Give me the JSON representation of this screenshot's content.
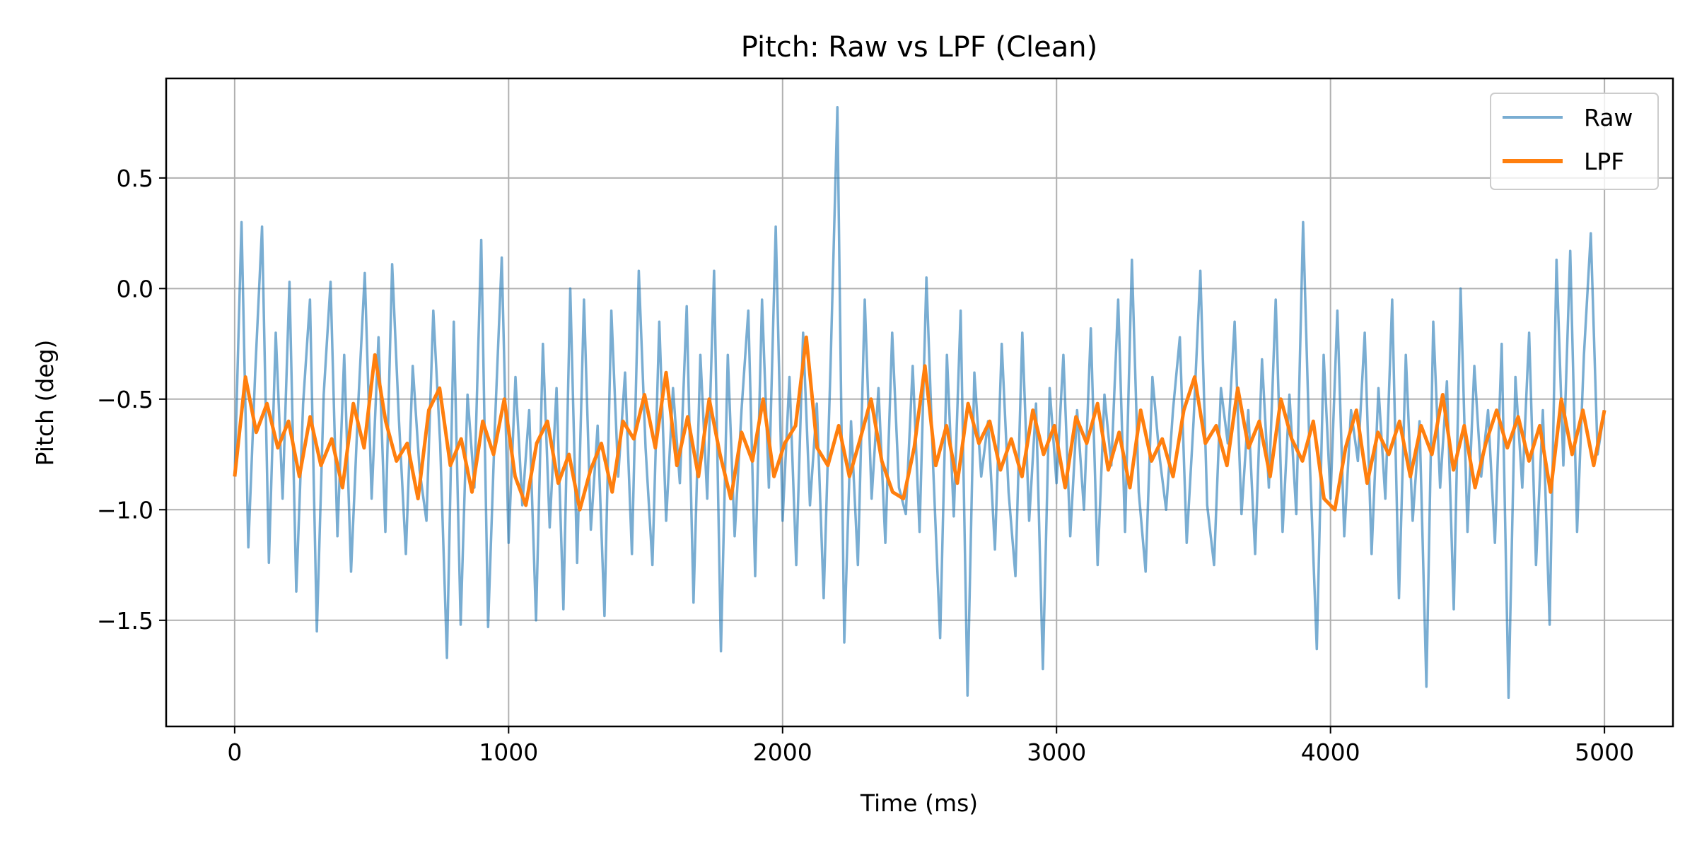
{
  "chart_data": {
    "type": "line",
    "title": "Pitch: Raw vs LPF (Clean)",
    "xlabel": "Time (ms)",
    "ylabel": "Pitch (deg)",
    "xlim": [
      -250,
      5250
    ],
    "ylim": [
      -1.98,
      0.95
    ],
    "x_start": 0,
    "x_end": 5000,
    "xticks": [
      0,
      1000,
      2000,
      3000,
      4000,
      5000
    ],
    "xtick_labels": [
      "0",
      "1000",
      "2000",
      "3000",
      "4000",
      "5000"
    ],
    "yticks": [
      0.5,
      0.0,
      -0.5,
      -1.0,
      -1.5
    ],
    "ytick_labels": [
      "0.5",
      "0.0",
      "−0.5",
      "−1.0",
      "−1.5"
    ],
    "grid": true,
    "legend_position": "top-right",
    "series": [
      {
        "name": "Raw",
        "color": "#1f77b4",
        "opacity": 0.6,
        "values": [
          -0.85,
          0.3,
          -1.17,
          -0.38,
          0.28,
          -1.24,
          -0.2,
          -0.95,
          0.03,
          -1.37,
          -0.52,
          -0.05,
          -1.55,
          -0.48,
          0.03,
          -1.12,
          -0.3,
          -1.28,
          -0.55,
          0.07,
          -0.95,
          -0.22,
          -1.1,
          0.11,
          -0.6,
          -1.2,
          -0.35,
          -0.82,
          -1.05,
          -0.1,
          -0.7,
          -1.67,
          -0.15,
          -1.52,
          -0.48,
          -0.9,
          0.22,
          -1.53,
          -0.62,
          0.14,
          -1.15,
          -0.4,
          -0.98,
          -0.55,
          -1.5,
          -0.25,
          -1.08,
          -0.45,
          -1.45,
          0.0,
          -1.24,
          -0.05,
          -1.09,
          -0.62,
          -1.48,
          -0.1,
          -0.85,
          -0.38,
          -1.2,
          0.08,
          -0.72,
          -1.25,
          -0.15,
          -1.05,
          -0.45,
          -0.88,
          -0.08,
          -1.42,
          -0.3,
          -0.95,
          0.08,
          -1.64,
          -0.3,
          -1.12,
          -0.55,
          -0.1,
          -1.3,
          -0.05,
          -0.9,
          0.28,
          -1.05,
          -0.4,
          -1.25,
          -0.2,
          -0.98,
          -0.52,
          -1.4,
          -0.35,
          0.82,
          -1.6,
          -0.6,
          -1.25,
          -0.05,
          -0.95,
          -0.45,
          -1.15,
          -0.2,
          -0.9,
          -1.02,
          -0.35,
          -1.1,
          0.05,
          -0.82,
          -1.58,
          -0.3,
          -1.03,
          -0.1,
          -1.84,
          -0.38,
          -0.85,
          -0.6,
          -1.18,
          -0.25,
          -0.92,
          -1.3,
          -0.2,
          -1.05,
          -0.52,
          -1.72,
          -0.45,
          -0.88,
          -0.3,
          -1.12,
          -0.55,
          -1.0,
          -0.18,
          -1.25,
          -0.48,
          -0.8,
          -0.05,
          -1.1,
          0.13,
          -0.92,
          -1.28,
          -0.4,
          -0.75,
          -1.0,
          -0.55,
          -0.22,
          -1.15,
          -0.6,
          0.08,
          -0.98,
          -1.25,
          -0.45,
          -0.7,
          -0.15,
          -1.02,
          -0.55,
          -1.2,
          -0.32,
          -0.9,
          -0.05,
          -1.1,
          -0.48,
          -1.02,
          0.3,
          -0.8,
          -1.63,
          -0.3,
          -0.95,
          -0.1,
          -1.12,
          -0.55,
          -0.78,
          -0.2,
          -1.2,
          -0.45,
          -0.95,
          -0.05,
          -1.4,
          -0.3,
          -1.05,
          -0.6,
          -1.8,
          -0.15,
          -0.9,
          -0.42,
          -1.45,
          0.0,
          -1.1,
          -0.35,
          -0.85,
          -0.55,
          -1.15,
          -0.25,
          -1.85,
          -0.4,
          -0.9,
          -0.2,
          -1.25,
          -0.55,
          -1.52,
          0.13,
          -0.8,
          0.17,
          -1.1,
          -0.3,
          0.25,
          -0.75,
          -0.55
        ]
      },
      {
        "name": "LPF",
        "color": "#ff7f0e",
        "opacity": 1,
        "values": [
          -0.85,
          -0.4,
          -0.65,
          -0.52,
          -0.72,
          -0.6,
          -0.85,
          -0.58,
          -0.8,
          -0.68,
          -0.9,
          -0.52,
          -0.72,
          -0.3,
          -0.6,
          -0.78,
          -0.7,
          -0.95,
          -0.55,
          -0.45,
          -0.8,
          -0.68,
          -0.92,
          -0.6,
          -0.75,
          -0.5,
          -0.85,
          -0.98,
          -0.7,
          -0.6,
          -0.88,
          -0.75,
          -1.0,
          -0.82,
          -0.7,
          -0.92,
          -0.6,
          -0.68,
          -0.48,
          -0.72,
          -0.38,
          -0.8,
          -0.58,
          -0.85,
          -0.5,
          -0.75,
          -0.95,
          -0.65,
          -0.78,
          -0.5,
          -0.85,
          -0.7,
          -0.62,
          -0.22,
          -0.72,
          -0.8,
          -0.62,
          -0.85,
          -0.68,
          -0.5,
          -0.78,
          -0.92,
          -0.95,
          -0.72,
          -0.35,
          -0.8,
          -0.62,
          -0.88,
          -0.52,
          -0.7,
          -0.6,
          -0.82,
          -0.68,
          -0.85,
          -0.55,
          -0.75,
          -0.62,
          -0.9,
          -0.58,
          -0.7,
          -0.52,
          -0.82,
          -0.65,
          -0.9,
          -0.55,
          -0.78,
          -0.68,
          -0.85,
          -0.55,
          -0.4,
          -0.7,
          -0.62,
          -0.8,
          -0.45,
          -0.72,
          -0.6,
          -0.85,
          -0.5,
          -0.68,
          -0.78,
          -0.6,
          -0.95,
          -1.0,
          -0.72,
          -0.55,
          -0.88,
          -0.65,
          -0.75,
          -0.6,
          -0.85,
          -0.62,
          -0.75,
          -0.48,
          -0.82,
          -0.62,
          -0.9,
          -0.7,
          -0.55,
          -0.72,
          -0.58,
          -0.78,
          -0.62,
          -0.92,
          -0.5,
          -0.75,
          -0.55,
          -0.8,
          -0.55
        ]
      }
    ]
  }
}
